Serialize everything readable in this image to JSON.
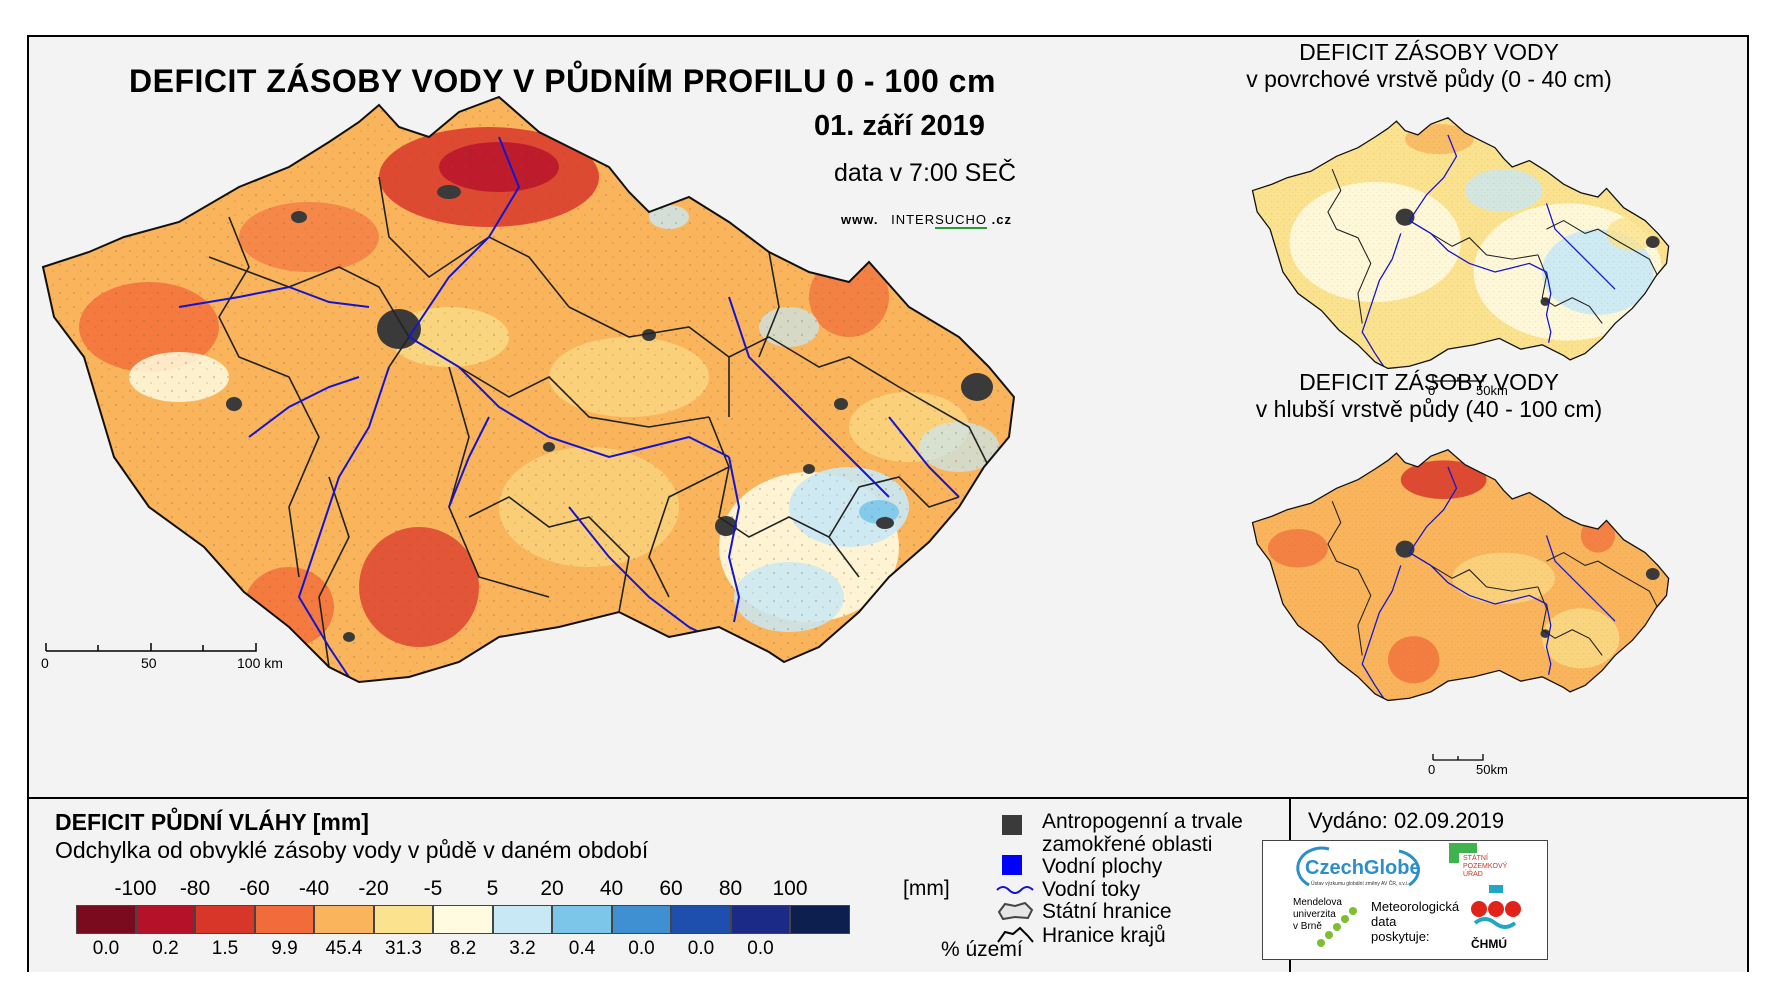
{
  "main": {
    "title": "DEFICIT ZÁSOBY VODY V PŮDNÍM PROFILU 0 - 100 cm",
    "date": "01. září 2019",
    "data_time": "data v 7:00 SEČ",
    "web": {
      "prefix": "www.",
      "brand_a": "INTER",
      "brand_b": "SUCHO",
      "suffix": ".cz"
    },
    "scale": {
      "labels": [
        "0",
        "50",
        "100 km"
      ]
    }
  },
  "inset_top": {
    "title_line1": "DEFICIT ZÁSOBY VODY",
    "title_line2": "v povrchové vrstvě půdy (0 - 40 cm)",
    "scale": {
      "labels": [
        "0",
        "50km"
      ]
    }
  },
  "inset_bottom": {
    "title_line1": "DEFICIT ZÁSOBY VODY",
    "title_line2": "v hlubší vrstvě půdy (40 - 100 cm)",
    "scale": {
      "labels": [
        "0",
        "50km"
      ]
    }
  },
  "legend": {
    "title": "DEFICIT PŮDNÍ VLÁHY [mm]",
    "subtitle": "Odchylka od obvyklé zásoby vody v půdě v daném období",
    "ticks": [
      "-100",
      "-80",
      "-60",
      "-40",
      "-20",
      "-5",
      "5",
      "20",
      "40",
      "60",
      "80",
      "100"
    ],
    "unit": "[mm]",
    "classes": [
      {
        "color": "#7a0a1e",
        "pct": "0.0"
      },
      {
        "color": "#b5122a",
        "pct": "0.2"
      },
      {
        "color": "#d9362a",
        "pct": "1.5"
      },
      {
        "color": "#f26b3a",
        "pct": "9.9"
      },
      {
        "color": "#f9b45c",
        "pct": "45.4"
      },
      {
        "color": "#fbe28e",
        "pct": "31.3"
      },
      {
        "color": "#fefbe0",
        "pct": "8.2"
      },
      {
        "color": "#c9e8f5",
        "pct": "3.2"
      },
      {
        "color": "#7cc6ea",
        "pct": "0.4"
      },
      {
        "color": "#3f8fd3",
        "pct": "0.0"
      },
      {
        "color": "#1e4fae",
        "pct": "0.0"
      },
      {
        "color": "#1b2a86",
        "pct": "0.0"
      },
      {
        "color": "#0d1f4f",
        "pct": ""
      }
    ],
    "pct_label": "% území"
  },
  "symbols": {
    "anthropogenic_line1": "Antropogenní a trvale",
    "anthropogenic_line2": "zamokřené oblasti",
    "water_bodies": "Vodní plochy",
    "streams": "Vodní toky",
    "state_border": "Státní hranice",
    "region_border": "Hranice krajů"
  },
  "issued": "Vydáno: 02.09.2019",
  "logos": {
    "czechglobe": "CzechGlobe",
    "czechglobe_sub": "Ústav výzkumu globální změny AV ČR, v.v.i.",
    "spu": [
      "STÁTNÍ",
      "POZEMKOVÝ",
      "ÚŘAD"
    ],
    "mendel": [
      "Mendelova",
      "univerzita",
      "v Brně"
    ],
    "meteo": [
      "Meteorologická",
      "data",
      "poskytuje:"
    ],
    "chmu": "ČHMÚ"
  },
  "colors": {
    "water": "#1515d0",
    "urban": "#3a3a3a",
    "border": "#222222"
  }
}
